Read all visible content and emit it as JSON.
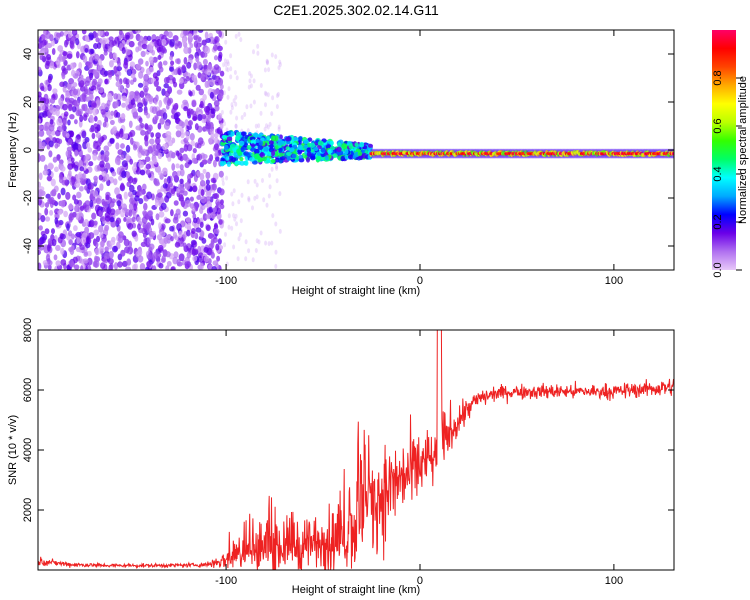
{
  "title": "C2E1.2025.302.02.14.G11",
  "chart_data": [
    {
      "type": "heatmap",
      "title": "C2E1.2025.302.02.14.G11",
      "xlabel": "Height of straight line (km)",
      "ylabel": "Frequency (Hz)",
      "xlim": [
        -197,
        131
      ],
      "ylim": [
        -50,
        50
      ],
      "xticks": [
        -100,
        0,
        100
      ],
      "yticks": [
        -40,
        -20,
        0,
        20,
        40
      ],
      "colorbar": {
        "label": "Normalized spectral amplitude",
        "range": [
          0,
          1
        ],
        "ticks": [
          0.0,
          0.2,
          0.4,
          0.6,
          0.8
        ],
        "colormap": [
          "#e8c8f8",
          "#b070f0",
          "#6a00e8",
          "#0000ff",
          "#00aaff",
          "#00ffff",
          "#00ff66",
          "#33ff00",
          "#bbff00",
          "#ffff00",
          "#ffaa00",
          "#ff4400",
          "#ff0000",
          "#ff0066"
        ]
      },
      "regions": [
        {
          "x_range": [
            -197,
            -102
          ],
          "description": "broadband noise",
          "freq_range": [
            -50,
            50
          ],
          "amplitude": 0.12
        },
        {
          "x_range": [
            -102,
            -25
          ],
          "description": "tapering signal",
          "freq_range_start": [
            -6,
            8
          ],
          "freq_range_end": [
            -3,
            2
          ],
          "amplitude": 0.35
        },
        {
          "x_range": [
            -25,
            131
          ],
          "description": "carrier line",
          "center_freq": -1.5,
          "amplitude": 0.9
        }
      ]
    },
    {
      "type": "line",
      "title": "",
      "xlabel": "Height of straight line (km)",
      "ylabel": "SNR (10 * v/v)",
      "xlim": [
        -197,
        131
      ],
      "ylim": [
        0,
        8000
      ],
      "xticks": [
        -100,
        0,
        100
      ],
      "yticks": [
        2000,
        4000,
        6000,
        8000
      ],
      "series": [
        {
          "name": "SNR",
          "color": "#ee2222",
          "x": [
            -197,
            -190,
            -180,
            -160,
            -140,
            -120,
            -110,
            -100,
            -92,
            -85,
            -80,
            -70,
            -60,
            -50,
            -45,
            -40,
            -35,
            -30,
            -28,
            -25,
            -20,
            -15,
            -10,
            -5,
            0,
            5,
            8,
            10,
            12,
            15,
            20,
            25,
            30,
            40,
            50,
            60,
            70,
            80,
            90,
            100,
            110,
            120,
            131
          ],
          "values": [
            300,
            250,
            180,
            150,
            150,
            160,
            180,
            350,
            550,
            700,
            750,
            800,
            850,
            900,
            950,
            1000,
            1400,
            1900,
            2100,
            2300,
            2500,
            2800,
            3000,
            3200,
            3500,
            3700,
            3600,
            4000,
            4300,
            4600,
            5000,
            5400,
            5700,
            5900,
            5950,
            5950,
            5950,
            5950,
            5950,
            5950,
            6000,
            6050,
            6100
          ],
          "spread": [
            150,
            100,
            80,
            60,
            60,
            70,
            80,
            350,
            700,
            900,
            900,
            900,
            900,
            1000,
            1100,
            1200,
            1500,
            1800,
            1800,
            1800,
            1600,
            1500,
            1400,
            1300,
            1200,
            1000,
            900,
            1200,
            1000,
            800,
            600,
            400,
            300,
            250,
            250,
            250,
            250,
            250,
            250,
            250,
            250,
            300,
            300
          ]
        }
      ]
    }
  ]
}
